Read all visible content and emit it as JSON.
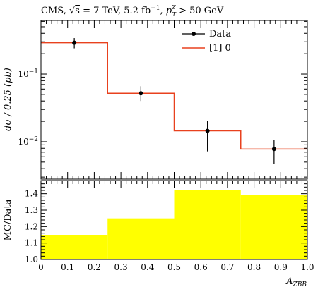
{
  "header": {
    "title": "CMS, √s = 7 TeV, 5.2 fb⁻¹, p_T^Z > 50 GeV",
    "title_parts": {
      "prefix": "CMS, ",
      "sqrt_s": "s",
      "energy": " = 7 TeV, 5.2 fb",
      "lumi_exp": "−1",
      "sep": ", ",
      "pt": "p",
      "pt_sub": "T",
      "pt_sup": "Z",
      "cut": " > 50 GeV"
    }
  },
  "chart_data": [
    {
      "type": "line",
      "panel": "main",
      "ylabel": "dσ / 0.25 (pb)",
      "yscale": "log",
      "ylim": [
        0.0028,
        0.62
      ],
      "xlim": [
        0,
        1
      ],
      "ytick_labels": [
        {
          "value": 0.1,
          "base": "10",
          "exp": "−1"
        },
        {
          "value": 0.01,
          "base": "10",
          "exp": "−2"
        }
      ],
      "legend_position": "top-right",
      "legend": {
        "data_label": "Data",
        "mc_label": "[1] 0"
      },
      "colors": {
        "mc_line": "#e8411e",
        "data": "#000000"
      },
      "series": [
        {
          "name": "Data",
          "kind": "points_with_errors",
          "x": [
            0.125,
            0.375,
            0.625,
            0.875
          ],
          "y": [
            0.29,
            0.052,
            0.0145,
            0.0078
          ],
          "y_low": [
            0.24,
            0.04,
            0.0072,
            0.0047
          ],
          "y_high": [
            0.34,
            0.066,
            0.0205,
            0.0105
          ]
        },
        {
          "name": "[1] 0",
          "kind": "step_histogram",
          "bin_edges": [
            0,
            0.25,
            0.5,
            0.75,
            1.0
          ],
          "values": [
            0.29,
            0.052,
            0.0145,
            0.0078
          ]
        }
      ]
    },
    {
      "type": "bar",
      "panel": "ratio",
      "ylabel": "MC/Data",
      "xlabel": "A_ZBB",
      "xlabel_parts": {
        "main": "A",
        "sub": "ZBB"
      },
      "ylim": [
        1.0,
        1.48
      ],
      "xlim": [
        0,
        1
      ],
      "yticks": [
        1.0,
        1.1,
        1.2,
        1.3,
        1.4
      ],
      "ytick_labels": [
        "1.0",
        "1.1",
        "1.2",
        "1.3",
        "1.4"
      ],
      "xticks": [
        0,
        0.1,
        0.2,
        0.3,
        0.4,
        0.5,
        0.6,
        0.7,
        0.8,
        0.9,
        1.0
      ],
      "xtick_labels": [
        "0",
        "0.1",
        "0.2",
        "0.3",
        "0.4",
        "0.5",
        "0.6",
        "0.7",
        "0.8",
        "0.9",
        "1.0"
      ],
      "colors": {
        "band": "#ffff00"
      },
      "series": [
        {
          "kind": "band",
          "bin_edges": [
            0,
            0.25,
            0.5,
            0.75,
            1.0
          ],
          "values": [
            1.15,
            1.25,
            1.42,
            1.39
          ]
        }
      ]
    }
  ]
}
